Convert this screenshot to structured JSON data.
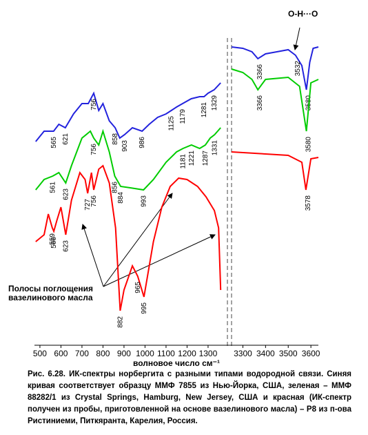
{
  "chart_data": [
    {
      "type": "line",
      "xlim": [
        474,
        1392
      ],
      "ylim": [
        0,
        440
      ],
      "xticks": [
        500,
        600,
        700,
        800,
        900,
        1000,
        1100,
        1200,
        1300
      ],
      "xlabel": "волновое число см⁻¹",
      "annotation": [
        "Полосы поглощения",
        "вазелинового масла"
      ],
      "series": [
        {
          "color": "#2222dd",
          "x": [
            480,
            520,
            565,
            590,
            621,
            660,
            700,
            730,
            756,
            780,
            800,
            830,
            858,
            880,
            903,
            940,
            986,
            1020,
            1060,
            1100,
            1125,
            1150,
            1179,
            1220,
            1260,
            1281,
            1300,
            1329,
            1360
          ],
          "values": [
            295,
            310,
            310,
            320,
            315,
            335,
            350,
            350,
            365,
            340,
            350,
            325,
            315,
            300,
            305,
            315,
            310,
            320,
            330,
            335,
            340,
            345,
            350,
            357,
            360,
            360,
            365,
            370,
            380
          ],
          "peaks": [
            565,
            621,
            756,
            858,
            903,
            986,
            1125,
            1179,
            1281,
            1329
          ]
        },
        {
          "color": "#00cc00",
          "x": [
            480,
            520,
            561,
            590,
            623,
            650,
            700,
            740,
            756,
            780,
            800,
            830,
            856,
            884,
            930,
            993,
            1040,
            1100,
            1150,
            1181,
            1221,
            1260,
            1287,
            1310,
            1331,
            1360
          ],
          "values": [
            225,
            240,
            245,
            250,
            235,
            260,
            300,
            310,
            300,
            290,
            310,
            280,
            245,
            230,
            228,
            225,
            240,
            265,
            280,
            285,
            290,
            285,
            290,
            300,
            305,
            315
          ],
          "peaks": [
            561,
            623,
            756,
            856,
            884,
            993,
            1181,
            1221,
            1287,
            1331
          ]
        },
        {
          "color": "#ff0000",
          "x": [
            480,
            520,
            540,
            559,
            566,
            580,
            600,
            623,
            650,
            690,
            715,
            727,
            745,
            756,
            780,
            800,
            830,
            860,
            882,
            900,
            940,
            965,
            995,
            1040,
            1080,
            1120,
            1160,
            1200,
            1250,
            1290,
            1330,
            1350,
            1360
          ],
          "values": [
            150,
            160,
            190,
            170,
            165,
            180,
            200,
            160,
            210,
            250,
            240,
            220,
            250,
            225,
            255,
            260,
            235,
            170,
            50,
            80,
            115,
            100,
            70,
            150,
            200,
            230,
            242,
            240,
            230,
            215,
            195,
            170,
            80
          ],
          "peaks": [
            559,
            566,
            623,
            727,
            756,
            882,
            965,
            995
          ]
        }
      ]
    },
    {
      "type": "line",
      "xlim": [
        3250,
        3633
      ],
      "ylim": [
        0,
        440
      ],
      "xticks": [
        3300,
        3400,
        3500,
        3600
      ],
      "annotation": [
        "O-H···O"
      ],
      "series": [
        {
          "color": "#2222dd",
          "x": [
            3250,
            3300,
            3340,
            3366,
            3400,
            3450,
            3500,
            3532,
            3560,
            3580,
            3595,
            3610,
            3633
          ],
          "values": [
            432,
            430,
            425,
            415,
            422,
            425,
            428,
            420,
            405,
            370,
            410,
            430,
            432
          ],
          "peaks": [
            3366,
            3532,
            3580
          ]
        },
        {
          "color": "#00cc00",
          "x": [
            3250,
            3300,
            3340,
            3366,
            3400,
            3500,
            3550,
            3580,
            3600,
            3633
          ],
          "values": [
            400,
            395,
            385,
            370,
            385,
            388,
            375,
            310,
            380,
            385
          ],
          "peaks": [
            3366,
            3580
          ]
        },
        {
          "color": "#ff0000",
          "x": [
            3250,
            3400,
            3500,
            3560,
            3578,
            3600,
            3633
          ],
          "values": [
            280,
            277,
            275,
            265,
            225,
            270,
            272
          ],
          "peaks": [
            3578
          ]
        }
      ]
    }
  ],
  "caption": "Рис. 6.28. ИК-спектры норбергита с разными типами водородной связи. Синяя кривая соответствует образцу ММФ 7855 из Нью-Йорка, США, зеленая – ММФ 88282/1 из Crystal Springs, Hamburg, New Jersey, США и красная (ИК-спектр получен из пробы, приготовленной на основе вазелинового масла) – Р8 из п-ова Ристиниеми, Питкяранта, Карелия, Россия."
}
